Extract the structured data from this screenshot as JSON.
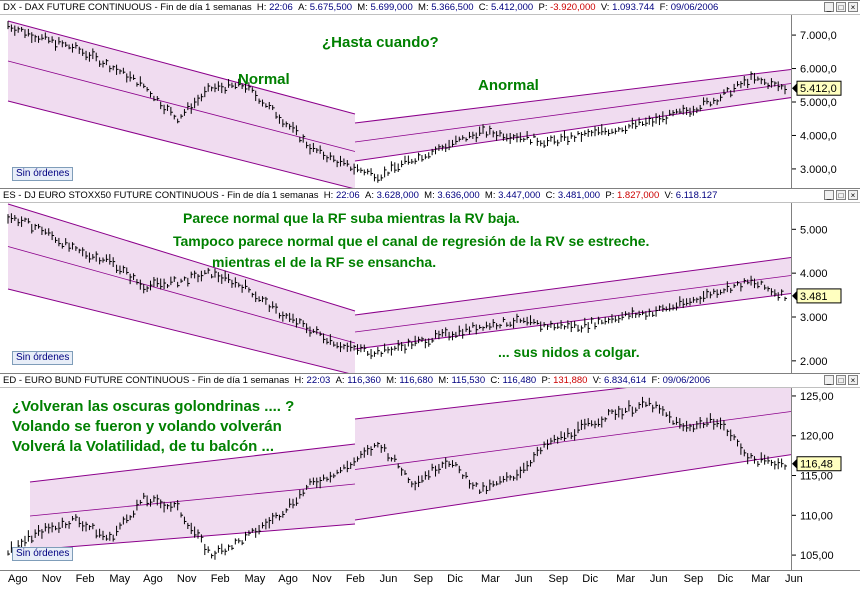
{
  "panes": [
    {
      "id": "dax",
      "header": {
        "title": "DX - DAX FUTURE CONTINUOUS - Fin de día 1 semanas",
        "h_label": "H:",
        "h_value": "22:06",
        "a_label": "A:",
        "a_value": "5.675,500",
        "m_label": "M:",
        "m_value": "5.699,000",
        "min_label": "M:",
        "min_value": "5.366,500",
        "c_label": "C:",
        "c_value": "5.412,000",
        "p_label": "P:",
        "p_value": "-3.920,000",
        "v_label": "V:",
        "v_value": "1.093.744",
        "f_label": "F:",
        "f_value": "09/06/2006"
      },
      "y_ticks": [
        "7.000,0",
        "6.000,0",
        "5.000,0",
        "4.000,0",
        "3.000,0"
      ],
      "last_value": "5.412,0",
      "orders_label": "Sin órdenes",
      "annotations": [
        "¿Hasta cuando?",
        "Normal",
        "Anormal"
      ]
    },
    {
      "id": "stoxx",
      "header": {
        "title": "ES - DJ EURO STOXX50 FUTURE CONTINUOUS - Fin de día 1 semanas",
        "h_label": "H:",
        "h_value": "22:06",
        "a_label": "A:",
        "a_value": "3.628,000",
        "m_label": "M:",
        "m_value": "3.636,000",
        "min_label": "M:",
        "min_value": "3.447,000",
        "c_label": "C:",
        "c_value": "3.481,000",
        "p_label": "P:",
        "p_value": "1.827,000",
        "v_label": "V:",
        "v_value": "6.118.127",
        "f_label": "",
        "f_value": ""
      },
      "y_ticks": [
        "5.000",
        "4.000",
        "3.000",
        "2.000"
      ],
      "last_value": "3.481",
      "orders_label": "Sin órdenes",
      "annotations": [
        "Parece normal que la RF suba mientras la RV baja.",
        "Tampoco parece normal que el canal de regresión de la RV se estreche.",
        "mientras el de la RF se ensancha.",
        "... sus nidos a colgar."
      ]
    },
    {
      "id": "bund",
      "header": {
        "title": "ED - EURO BUND FUTURE CONTINUOUS - Fin de día 1 semanas",
        "h_label": "H:",
        "h_value": "22:03",
        "a_label": "A:",
        "a_value": "116,360",
        "m_label": "M:",
        "m_value": "116,680",
        "min_label": "M:",
        "min_value": "115,530",
        "c_label": "C:",
        "c_value": "116,480",
        "p_label": "P:",
        "p_value": "131,880",
        "v_label": "V:",
        "v_value": "6.834,614",
        "f_label": "F:",
        "f_value": "09/06/2006"
      },
      "y_ticks": [
        "125,00",
        "120,00",
        "115,00",
        "110,00",
        "105,00"
      ],
      "last_value": "116,48",
      "orders_label": "Sin órdenes",
      "annotations": [
        "¿Volveran las oscuras golondrinas .... ?",
        "Volando se fueron y volando volverán",
        "Volverá la Volatilidad, de tu balcón ..."
      ]
    }
  ],
  "x_axis_labels": [
    "Ago",
    "Nov",
    "Feb",
    "May",
    "Ago",
    "Nov",
    "Feb",
    "May",
    "Ago",
    "Nov",
    "Feb",
    "Jun",
    "Sep",
    "Dic",
    "Mar",
    "Jun",
    "Sep",
    "Dic",
    "Mar",
    "Jun",
    "Sep",
    "Dic",
    "Mar",
    "Jun"
  ],
  "colors": {
    "channel_fill": "#f0dcf0",
    "channel_line": "#8b008b",
    "price_bar": "#000000",
    "annotation": "#008000",
    "header_value": "#000080",
    "header_negative": "#cc0000"
  },
  "chart_data": [
    {
      "type": "line",
      "title": "DX - DAX FUTURE CONTINUOUS",
      "series": [
        {
          "x": [
            "Ago",
            "Nov",
            "Feb",
            "May",
            "Ago",
            "Nov",
            "Feb",
            "May",
            "Ago",
            "Nov",
            "Feb",
            "Jun",
            "Sep",
            "Dic",
            "Mar",
            "Jun",
            "Sep",
            "Dic",
            "Mar",
            "Jun",
            "Sep",
            "Dic",
            "Mar",
            "Jun"
          ],
          "values": [
            7300,
            6900,
            6600,
            6100,
            5500,
            4500,
            5400,
            5500,
            4600,
            3600,
            3100,
            2800,
            3300,
            3700,
            4100,
            4000,
            3800,
            4000,
            4200,
            4400,
            4700,
            5100,
            5700,
            5412
          ]
        }
      ],
      "ylim": [
        2400,
        7600
      ],
      "y_ticks": [
        7000,
        6000,
        5000,
        4000,
        3000
      ]
    },
    {
      "type": "line",
      "title": "ES - DJ EURO STOXX50 FUTURE CONTINUOUS",
      "series": [
        {
          "x": [
            "Ago",
            "Nov",
            "Feb",
            "May",
            "Ago",
            "Nov",
            "Feb",
            "May",
            "Ago",
            "Nov",
            "Feb",
            "Jun",
            "Sep",
            "Dic",
            "Mar",
            "Jun",
            "Sep",
            "Dic",
            "Mar",
            "Jun",
            "Sep",
            "Dic",
            "Mar",
            "Jun"
          ],
          "values": [
            5300,
            5000,
            4500,
            4300,
            3700,
            3800,
            4000,
            3700,
            3100,
            2700,
            2300,
            2200,
            2400,
            2600,
            2800,
            2900,
            2800,
            2800,
            3000,
            3100,
            3300,
            3600,
            3800,
            3481
          ]
        }
      ],
      "ylim": [
        1700,
        5600
      ],
      "y_ticks": [
        5000,
        4000,
        3000,
        2000
      ]
    },
    {
      "type": "line",
      "title": "ED - EURO BUND FUTURE CONTINUOUS",
      "series": [
        {
          "x": [
            "Ago",
            "Nov",
            "Feb",
            "May",
            "Ago",
            "Nov",
            "Feb",
            "May",
            "Ago",
            "Nov",
            "Feb",
            "Jun",
            "Sep",
            "Dic",
            "Mar",
            "Jun",
            "Sep",
            "Dic",
            "Mar",
            "Jun",
            "Sep",
            "Dic",
            "Mar",
            "Jun"
          ],
          "values": [
            105.5,
            108,
            109.5,
            107,
            112,
            111,
            105,
            107,
            110,
            114,
            116,
            119,
            114,
            117,
            113,
            115,
            119,
            121,
            123,
            124,
            121,
            122,
            117,
            116.48
          ]
        }
      ],
      "ylim": [
        103,
        126
      ],
      "y_ticks": [
        125,
        120,
        115,
        110,
        105
      ]
    }
  ]
}
